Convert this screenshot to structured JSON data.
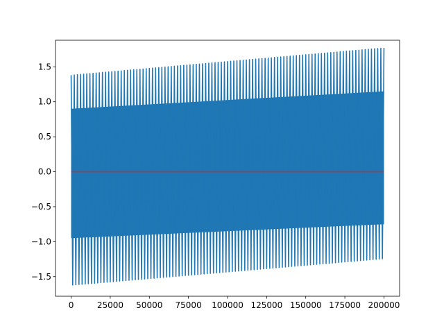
{
  "chart_data": {
    "type": "line",
    "title": "",
    "xlabel": "",
    "ylabel": "",
    "xlim": [
      -10000,
      210000
    ],
    "ylim": [
      -1.78,
      1.88
    ],
    "grid": false,
    "legend": "none",
    "x_ticks": [
      0,
      25000,
      50000,
      75000,
      100000,
      125000,
      150000,
      175000,
      200000
    ],
    "x_tick_labels": [
      "0",
      "25000",
      "50000",
      "75000",
      "100000",
      "125000",
      "150000",
      "175000",
      "200000"
    ],
    "y_ticks": [
      -1.5,
      -1.0,
      -0.5,
      0.0,
      0.5,
      1.0,
      1.5
    ],
    "y_tick_labels": [
      "−1.5",
      "−1.0",
      "−0.5",
      "0.0",
      "0.5",
      "1.0",
      "1.5"
    ],
    "series": [
      {
        "color": "#1f77b4",
        "description_values": {
          "x_range": [
            0,
            200000
          ],
          "envelope_upper": {
            "x": [
              0,
              200000
            ],
            "y": [
              1.38,
              1.77
            ]
          },
          "envelope_lower": {
            "x": [
              0,
              200000
            ],
            "y": [
              -1.62,
              -1.24
            ]
          },
          "dense_band_upper": {
            "x": [
              0,
              200000
            ],
            "y": [
              0.9,
              1.15
            ]
          },
          "dense_band_lower": {
            "x": [
              0,
              200000
            ],
            "y": [
              -0.95,
              -0.75
            ]
          },
          "cycles": 100
        }
      },
      {
        "color": "#d62728",
        "description_values": {
          "x": [
            0,
            200000
          ],
          "y": [
            0.0,
            0.0
          ]
        }
      }
    ]
  }
}
